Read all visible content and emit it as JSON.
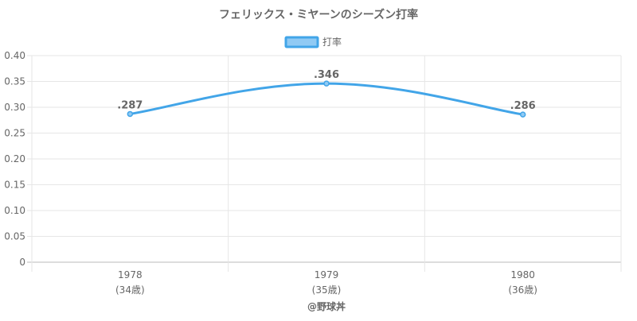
{
  "chart_data": {
    "type": "line",
    "title": "フェリックス・ミヤーンのシーズン打率",
    "categories": [
      "1978",
      "1979",
      "1980"
    ],
    "category_sublabels": [
      "(34歳)",
      "(35歳)",
      "(36歳)"
    ],
    "series": [
      {
        "name": "打率",
        "values": [
          0.287,
          0.346,
          0.286
        ],
        "labels": [
          ".287",
          ".346",
          ".286"
        ]
      }
    ],
    "ylim": [
      0,
      0.4
    ],
    "yticks": [
      "0",
      "0.05",
      "0.10",
      "0.15",
      "0.20",
      "0.25",
      "0.30",
      "0.35",
      "0.40"
    ],
    "legend_position": "top",
    "grid": true,
    "colors": {
      "line": "#42a5e8",
      "fill": "#90caf4",
      "grid": "#e6e6e6",
      "text": "#666666"
    }
  },
  "footer": {
    "credit": "@野球丼"
  }
}
